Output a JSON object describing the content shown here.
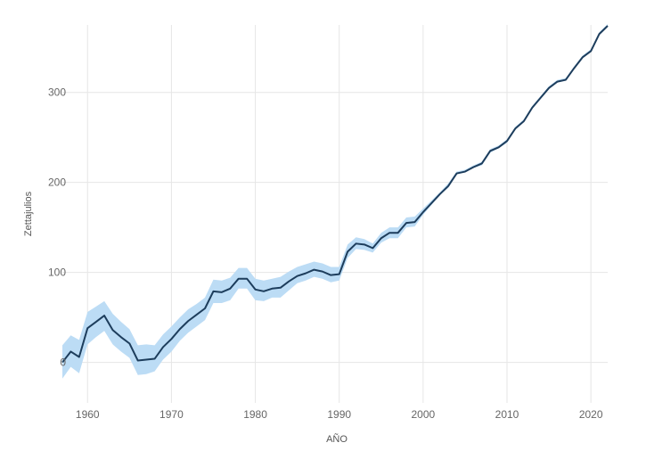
{
  "chart_data": {
    "type": "line",
    "xlabel": "AÑO",
    "ylabel": "Zettajulios",
    "xlim": [
      1957,
      2022
    ],
    "ylim": [
      -45,
      375
    ],
    "x_ticks": [
      1960,
      1970,
      1980,
      1990,
      2000,
      2010,
      2020
    ],
    "y_ticks": [
      0,
      100,
      200,
      300
    ],
    "grid": true,
    "colors": {
      "line": "#1d3d5c",
      "band": "#bcdcf5",
      "grid": "#e6e6e6"
    },
    "series": [
      {
        "x": [
          1957,
          1958,
          1959,
          1960,
          1961,
          1962,
          1963,
          1964,
          1965,
          1966,
          1967,
          1968,
          1969,
          1970,
          1971,
          1972,
          1973,
          1974,
          1975,
          1976,
          1977,
          1978,
          1979,
          1980,
          1981,
          1982,
          1983,
          1984,
          1985,
          1986,
          1987,
          1988,
          1989,
          1990,
          1991,
          1992,
          1993,
          1994,
          1995,
          1996,
          1997,
          1998,
          1999,
          2000,
          2001,
          2002,
          2003,
          2004,
          2005,
          2006,
          2007,
          2008,
          2009,
          2010,
          2011,
          2012,
          2013,
          2014,
          2015,
          2016,
          2017,
          2018,
          2019,
          2020,
          2021,
          2022
        ],
        "values": [
          0,
          12,
          6,
          38,
          45,
          52,
          36,
          28,
          21,
          2,
          3,
          4,
          17,
          26,
          37,
          46,
          53,
          60,
          79,
          78,
          82,
          93,
          93,
          81,
          79,
          82,
          83,
          90,
          96,
          99,
          103,
          101,
          97,
          98,
          123,
          132,
          131,
          127,
          138,
          144,
          144,
          155,
          156,
          167,
          177,
          187,
          196,
          210,
          212,
          217,
          221,
          235,
          239,
          246,
          260,
          268,
          283,
          294,
          305,
          312,
          314,
          327,
          339,
          346,
          365,
          374
        ],
        "lower": [
          -18,
          -5,
          -12,
          20,
          28,
          35,
          20,
          12,
          5,
          -14,
          -13,
          -10,
          3,
          12,
          24,
          33,
          40,
          47,
          66,
          66,
          69,
          82,
          82,
          69,
          68,
          72,
          72,
          80,
          88,
          91,
          95,
          93,
          89,
          91,
          116,
          126,
          125,
          122,
          133,
          138,
          138,
          150,
          151,
          164,
          175,
          186,
          194,
          209,
          211,
          216,
          219,
          233,
          238,
          244,
          259,
          267,
          282,
          293,
          304,
          311,
          313,
          326,
          338,
          345,
          364,
          373
        ],
        "upper": [
          19,
          30,
          25,
          56,
          62,
          68,
          54,
          45,
          37,
          19,
          20,
          19,
          31,
          40,
          50,
          59,
          65,
          72,
          92,
          91,
          94,
          105,
          105,
          93,
          91,
          93,
          95,
          101,
          106,
          109,
          112,
          110,
          106,
          106,
          131,
          139,
          137,
          132,
          144,
          150,
          150,
          161,
          162,
          171,
          180,
          189,
          199,
          212,
          214,
          219,
          223,
          237,
          241,
          248,
          262,
          270,
          285,
          296,
          307,
          314,
          316,
          329,
          341,
          348,
          367,
          376
        ]
      }
    ]
  }
}
